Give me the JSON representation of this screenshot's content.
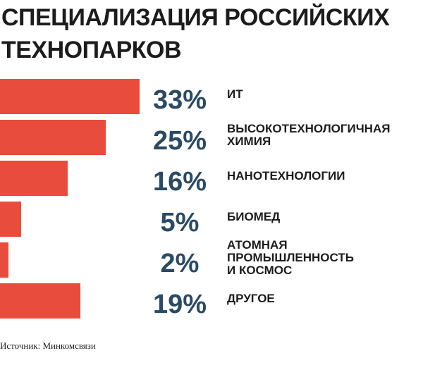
{
  "title": "СПЕЦИАЛИЗАЦИЯ РОССИЙСКИХ ТЕХНОПАРКОВ",
  "source": "Источник: Минкомсвязи",
  "colors": {
    "bar": "#e84c3d",
    "value_text": "#2b4a63",
    "label_text": "#1c1c1c"
  },
  "chart_data": {
    "type": "bar",
    "orientation": "horizontal",
    "title": "СПЕЦИАЛИЗАЦИЯ РОССИЙСКИХ ТЕХНОПАРКОВ",
    "categories": [
      [
        "ИТ"
      ],
      [
        "ВЫСОКОТЕХНОЛОГИЧНАЯ",
        "ХИМИЯ"
      ],
      [
        "НАНОТЕХНОЛОГИИ"
      ],
      [
        "БИОМЕД"
      ],
      [
        "АТОМНАЯ",
        "ПРОМЫШЛЕННОСТЬ",
        "И КОСМОС"
      ],
      [
        "ДРУГОЕ"
      ]
    ],
    "values": [
      33,
      25,
      16,
      5,
      2,
      19
    ],
    "value_labels": [
      "33%",
      "25%",
      "16%",
      "5%",
      "2%",
      "19%"
    ],
    "unit": "%",
    "xlim": [
      0,
      33
    ],
    "grid": false,
    "legend": "none"
  }
}
